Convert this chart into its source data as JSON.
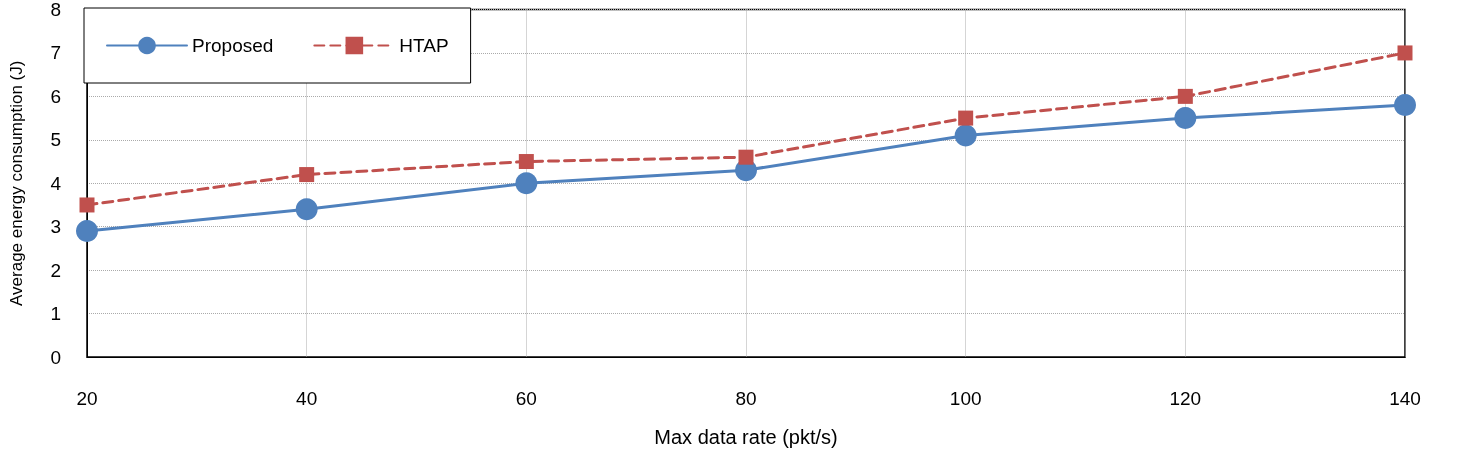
{
  "chart_data": {
    "type": "line",
    "xlabel": "Max data rate (pkt/s)",
    "ylabel": "Average energy consumption (J)",
    "x": [
      20,
      40,
      60,
      80,
      100,
      120,
      140
    ],
    "series": [
      {
        "name": "Proposed",
        "color": "#4f81bd",
        "marker": "circle",
        "line_style": "solid",
        "values": [
          2.9,
          3.4,
          4.0,
          4.3,
          5.1,
          5.5,
          5.8
        ]
      },
      {
        "name": "HTAP",
        "color": "#c0504d",
        "marker": "square",
        "line_style": "dashed",
        "values": [
          3.5,
          4.2,
          4.5,
          4.6,
          5.5,
          6.0,
          7.0
        ]
      }
    ],
    "xlim": [
      20,
      140
    ],
    "xticks": [
      20,
      40,
      60,
      80,
      100,
      120,
      140
    ],
    "ylim": [
      0,
      8
    ],
    "yticks": [
      0,
      1,
      2,
      3,
      4,
      5,
      6,
      7,
      8
    ],
    "grid": true,
    "legend": "top left"
  }
}
